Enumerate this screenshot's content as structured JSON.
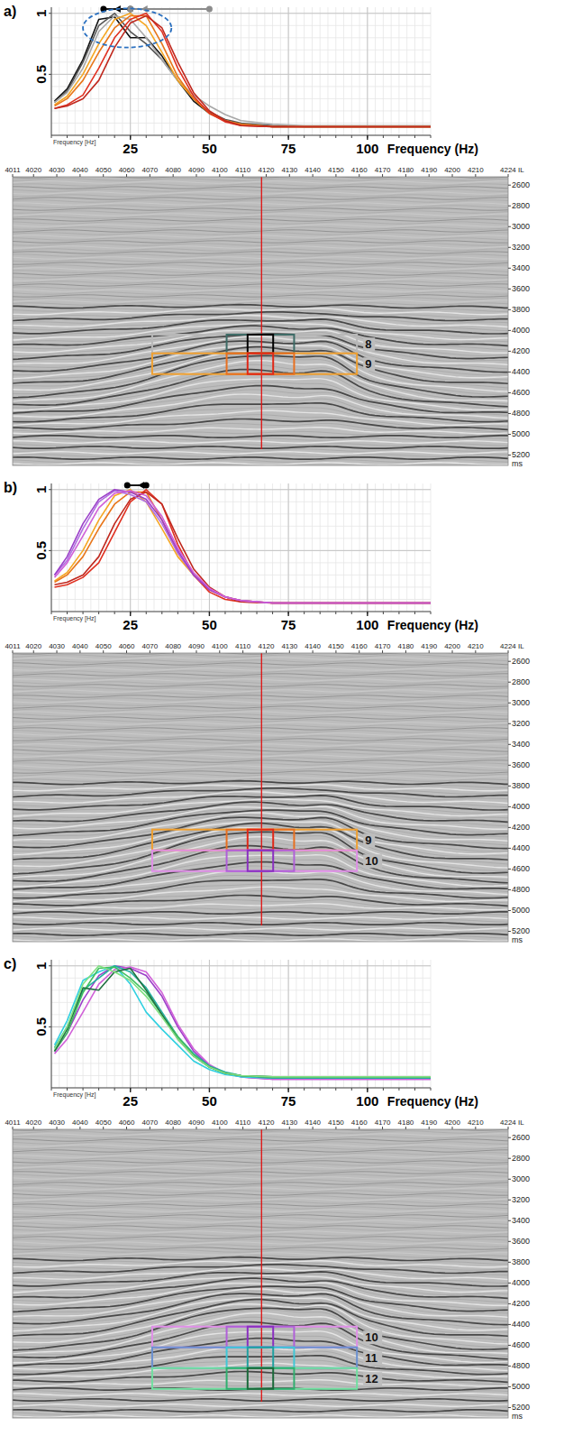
{
  "chart_data": [
    {
      "type": "line",
      "title": "a)",
      "xlabel": "Frequency (Hz)",
      "annotations": [
        "Frequency [Hz]"
      ],
      "x": [
        1,
        5,
        10,
        15,
        20,
        25,
        30,
        35,
        40,
        45,
        50,
        55,
        60,
        70,
        80,
        100,
        120
      ],
      "xlim": [
        0,
        120
      ],
      "xticks": [
        25,
        50,
        75,
        100
      ],
      "ylim": [
        0,
        1.05
      ],
      "yticks": [
        0.5,
        1
      ],
      "grid": true,
      "series": [
        {
          "color": "#111111",
          "values": [
            0.28,
            0.38,
            0.62,
            0.95,
            0.97,
            0.8,
            0.8,
            0.65,
            0.45,
            0.28,
            0.18,
            0.12,
            0.09,
            0.07,
            0.07,
            0.07,
            0.07
          ]
        },
        {
          "color": "#555555",
          "values": [
            0.27,
            0.36,
            0.6,
            0.9,
            1.0,
            0.85,
            0.75,
            0.62,
            0.45,
            0.3,
            0.19,
            0.13,
            0.1,
            0.08,
            0.07,
            0.07,
            0.07
          ]
        },
        {
          "color": "#a8a8a8",
          "values": [
            0.27,
            0.35,
            0.55,
            0.85,
            0.98,
            0.95,
            0.8,
            0.62,
            0.45,
            0.33,
            0.24,
            0.17,
            0.12,
            0.09,
            0.08,
            0.08,
            0.08
          ]
        },
        {
          "color": "#f5a623",
          "values": [
            0.25,
            0.32,
            0.5,
            0.75,
            0.95,
            1.0,
            0.9,
            0.68,
            0.45,
            0.3,
            0.18,
            0.12,
            0.09,
            0.07,
            0.07,
            0.07,
            0.07
          ]
        },
        {
          "color": "#e8761a",
          "values": [
            0.24,
            0.3,
            0.45,
            0.68,
            0.88,
            0.98,
            0.98,
            0.75,
            0.48,
            0.3,
            0.18,
            0.12,
            0.09,
            0.07,
            0.07,
            0.07,
            0.07
          ]
        },
        {
          "color": "#e03020",
          "values": [
            0.22,
            0.25,
            0.33,
            0.55,
            0.8,
            0.95,
            1.0,
            0.85,
            0.55,
            0.32,
            0.18,
            0.11,
            0.08,
            0.07,
            0.07,
            0.07,
            0.07
          ]
        },
        {
          "color": "#c0281e",
          "values": [
            0.22,
            0.24,
            0.3,
            0.45,
            0.72,
            0.92,
            0.98,
            0.88,
            0.6,
            0.35,
            0.2,
            0.12,
            0.08,
            0.07,
            0.07,
            0.07,
            0.07
          ]
        }
      ],
      "arrows": [
        {
          "from": 25,
          "to": 16.5,
          "color": "#000000"
        },
        {
          "from": 50,
          "to": 25,
          "color": "#8c8c8c"
        }
      ],
      "ellipse": {
        "x": [
          10,
          38
        ],
        "y": [
          0.72,
          1.04
        ],
        "color": "#2a70c0",
        "line_style": "dashed"
      }
    },
    {
      "type": "section",
      "xlim": [
        4011,
        4224
      ],
      "xticks": [
        4011,
        4020,
        4030,
        4040,
        4050,
        4060,
        4070,
        4080,
        4090,
        4100,
        4110,
        4120,
        4130,
        4140,
        4150,
        4160,
        4170,
        4180,
        4190,
        4200,
        4210,
        {
          "value": 4224,
          "label": "4224 IL"
        }
      ],
      "ylim": [
        2520,
        5300
      ],
      "yticks": [
        2600,
        2800,
        3000,
        3200,
        3400,
        3600,
        3800,
        4000,
        4200,
        4400,
        4600,
        4800,
        5000,
        5200
      ],
      "ylabel": "ms",
      "reference_line": 4118,
      "boxes": [
        {
          "label": "8",
          "time": [
            4040,
            4220
          ],
          "windows": [
            {
              "il": [
                4071,
                4159
              ],
              "color": "#b8b8b8"
            },
            {
              "il": [
                4103,
                4132
              ],
              "color": "#3d6b66"
            },
            {
              "il": [
                4112,
                4123
              ],
              "color": "#000000"
            }
          ]
        },
        {
          "label": "9",
          "time": [
            4220,
            4420
          ],
          "windows": [
            {
              "il": [
                4071,
                4159
              ],
              "color": "#f0a030"
            },
            {
              "il": [
                4103,
                4132
              ],
              "color": "#e87020"
            },
            {
              "il": [
                4112,
                4123
              ],
              "color": "#e02818"
            }
          ]
        }
      ]
    },
    {
      "type": "line",
      "title": "b)",
      "xlabel": "Frequency (Hz)",
      "annotations": [
        "Frequency [Hz]"
      ],
      "x": [
        1,
        5,
        10,
        15,
        20,
        25,
        30,
        35,
        40,
        45,
        50,
        55,
        60,
        70,
        80,
        100,
        120
      ],
      "xlim": [
        0,
        120
      ],
      "xticks": [
        25,
        50,
        75,
        100
      ],
      "ylim": [
        0,
        1.05
      ],
      "yticks": [
        0.5,
        1
      ],
      "grid": true,
      "series": [
        {
          "color": "#f5a623",
          "values": [
            0.25,
            0.32,
            0.5,
            0.75,
            0.95,
            1.0,
            0.9,
            0.68,
            0.45,
            0.3,
            0.18,
            0.12,
            0.09,
            0.07,
            0.07,
            0.07,
            0.07
          ]
        },
        {
          "color": "#e8761a",
          "values": [
            0.24,
            0.3,
            0.45,
            0.68,
            0.88,
            0.98,
            0.98,
            0.75,
            0.48,
            0.3,
            0.18,
            0.12,
            0.09,
            0.07,
            0.07,
            0.07,
            0.07
          ]
        },
        {
          "color": "#e03020",
          "values": [
            0.2,
            0.22,
            0.28,
            0.4,
            0.65,
            0.9,
            1.0,
            0.88,
            0.55,
            0.3,
            0.16,
            0.1,
            0.08,
            0.07,
            0.07,
            0.07,
            0.07
          ]
        },
        {
          "color": "#c0281e",
          "values": [
            0.22,
            0.24,
            0.3,
            0.45,
            0.72,
            0.92,
            0.98,
            0.88,
            0.6,
            0.35,
            0.2,
            0.12,
            0.08,
            0.07,
            0.07,
            0.07,
            0.07
          ]
        },
        {
          "color": "#b070e0",
          "values": [
            0.3,
            0.42,
            0.68,
            0.9,
            0.99,
            0.96,
            0.9,
            0.72,
            0.48,
            0.3,
            0.18,
            0.12,
            0.09,
            0.07,
            0.07,
            0.07,
            0.07
          ]
        },
        {
          "color": "#9b3fc8",
          "values": [
            0.3,
            0.45,
            0.72,
            0.92,
            1.0,
            0.98,
            0.92,
            0.75,
            0.5,
            0.3,
            0.18,
            0.12,
            0.09,
            0.07,
            0.07,
            0.07,
            0.07
          ]
        },
        {
          "color": "#d060d8",
          "values": [
            0.28,
            0.4,
            0.62,
            0.85,
            0.97,
            0.99,
            0.95,
            0.78,
            0.52,
            0.32,
            0.19,
            0.12,
            0.09,
            0.07,
            0.07,
            0.07,
            0.07
          ]
        }
      ],
      "arrows": [
        {
          "from": 30,
          "to": 24,
          "color": "#000000"
        }
      ]
    },
    {
      "type": "section",
      "xlim": [
        4011,
        4224
      ],
      "xticks": [
        4011,
        4020,
        4030,
        4040,
        4050,
        4060,
        4070,
        4080,
        4090,
        4100,
        4110,
        4120,
        4130,
        4140,
        4150,
        4160,
        4170,
        4180,
        4190,
        4200,
        4210,
        {
          "value": 4224,
          "label": "4224 IL"
        }
      ],
      "ylim": [
        2520,
        5300
      ],
      "yticks": [
        2600,
        2800,
        3000,
        3200,
        3400,
        3600,
        3800,
        4000,
        4200,
        4400,
        4600,
        4800,
        5000,
        5200
      ],
      "ylabel": "ms",
      "reference_line": 4118,
      "boxes": [
        {
          "label": "9",
          "time": [
            4220,
            4420
          ],
          "windows": [
            {
              "il": [
                4071,
                4159
              ],
              "color": "#f0a030"
            },
            {
              "il": [
                4103,
                4132
              ],
              "color": "#e87020"
            },
            {
              "il": [
                4112,
                4123
              ],
              "color": "#e02818"
            }
          ]
        },
        {
          "label": "10",
          "time": [
            4420,
            4620
          ],
          "windows": [
            {
              "il": [
                4071,
                4159
              ],
              "color": "#e08ee8"
            },
            {
              "il": [
                4103,
                4132
              ],
              "color": "#b060d8"
            },
            {
              "il": [
                4112,
                4123
              ],
              "color": "#8a30c0"
            }
          ]
        }
      ]
    },
    {
      "type": "line",
      "title": "c)",
      "xlabel": "Frequency (Hz)",
      "annotations": [
        "Frequency [Hz]"
      ],
      "x": [
        1,
        5,
        10,
        15,
        20,
        25,
        30,
        35,
        40,
        45,
        50,
        55,
        60,
        70,
        80,
        100,
        120
      ],
      "xlim": [
        0,
        120
      ],
      "xticks": [
        25,
        50,
        75,
        100
      ],
      "ylim": [
        0,
        1.05
      ],
      "yticks": [
        0.5,
        1
      ],
      "grid": true,
      "series": [
        {
          "color": "#9b3fc8",
          "values": [
            0.3,
            0.45,
            0.72,
            0.92,
            1.0,
            0.98,
            0.92,
            0.75,
            0.5,
            0.3,
            0.18,
            0.12,
            0.09,
            0.07,
            0.07,
            0.07,
            0.07
          ]
        },
        {
          "color": "#d060d8",
          "values": [
            0.28,
            0.4,
            0.62,
            0.85,
            0.97,
            0.99,
            0.95,
            0.78,
            0.52,
            0.32,
            0.19,
            0.12,
            0.09,
            0.07,
            0.07,
            0.07,
            0.07
          ]
        },
        {
          "color": "#30d0e0",
          "values": [
            0.35,
            0.55,
            0.88,
            0.95,
            1.0,
            0.85,
            0.62,
            0.48,
            0.35,
            0.22,
            0.15,
            0.11,
            0.09,
            0.08,
            0.08,
            0.08,
            0.08
          ]
        },
        {
          "color": "#20b0a0",
          "values": [
            0.33,
            0.5,
            0.8,
            0.9,
            1.0,
            0.95,
            0.82,
            0.62,
            0.42,
            0.28,
            0.18,
            0.13,
            0.1,
            0.08,
            0.08,
            0.08,
            0.08
          ]
        },
        {
          "color": "#40c060",
          "values": [
            0.3,
            0.45,
            0.78,
            0.98,
            0.99,
            0.9,
            0.78,
            0.6,
            0.42,
            0.27,
            0.17,
            0.12,
            0.1,
            0.09,
            0.09,
            0.09,
            0.09
          ]
        },
        {
          "color": "#207040",
          "values": [
            0.3,
            0.48,
            0.82,
            0.8,
            0.95,
            0.98,
            0.8,
            0.6,
            0.4,
            0.26,
            0.17,
            0.12,
            0.1,
            0.09,
            0.09,
            0.09,
            0.09
          ]
        },
        {
          "color": "#80e080",
          "values": [
            0.32,
            0.5,
            0.85,
            1.0,
            0.95,
            0.88,
            0.75,
            0.58,
            0.4,
            0.26,
            0.17,
            0.12,
            0.1,
            0.09,
            0.09,
            0.09,
            0.09
          ]
        }
      ]
    },
    {
      "type": "section",
      "xlim": [
        4011,
        4224
      ],
      "xticks": [
        4011,
        4020,
        4030,
        4040,
        4050,
        4060,
        4070,
        4080,
        4090,
        4100,
        4110,
        4120,
        4130,
        4140,
        4150,
        4160,
        4170,
        4180,
        4190,
        4200,
        4210,
        {
          "value": 4224,
          "label": "4224 IL"
        }
      ],
      "ylim": [
        2520,
        5300
      ],
      "yticks": [
        2600,
        2800,
        3000,
        3200,
        3400,
        3600,
        3800,
        4000,
        4200,
        4400,
        4600,
        4800,
        5000,
        5200
      ],
      "ylabel": "ms",
      "reference_line": 4118,
      "boxes": [
        {
          "label": "10",
          "time": [
            4420,
            4620
          ],
          "windows": [
            {
              "il": [
                4071,
                4159
              ],
              "color": "#e08ee8"
            },
            {
              "il": [
                4103,
                4132
              ],
              "color": "#b060d8"
            },
            {
              "il": [
                4112,
                4123
              ],
              "color": "#8a30c0"
            }
          ]
        },
        {
          "label": "11",
          "time": [
            4620,
            4820
          ],
          "windows": [
            {
              "il": [
                4071,
                4159
              ],
              "color": "#6a90d0"
            },
            {
              "il": [
                4103,
                4132
              ],
              "color": "#40c8d8"
            },
            {
              "il": [
                4112,
                4123
              ],
              "color": "#20a0a0"
            }
          ]
        },
        {
          "label": "12",
          "time": [
            4820,
            5020
          ],
          "windows": [
            {
              "il": [
                4071,
                4159
              ],
              "color": "#70e0a0"
            },
            {
              "il": [
                4103,
                4132
              ],
              "color": "#30b070"
            },
            {
              "il": [
                4112,
                4123
              ],
              "color": "#1a6a3a"
            }
          ]
        }
      ]
    }
  ]
}
